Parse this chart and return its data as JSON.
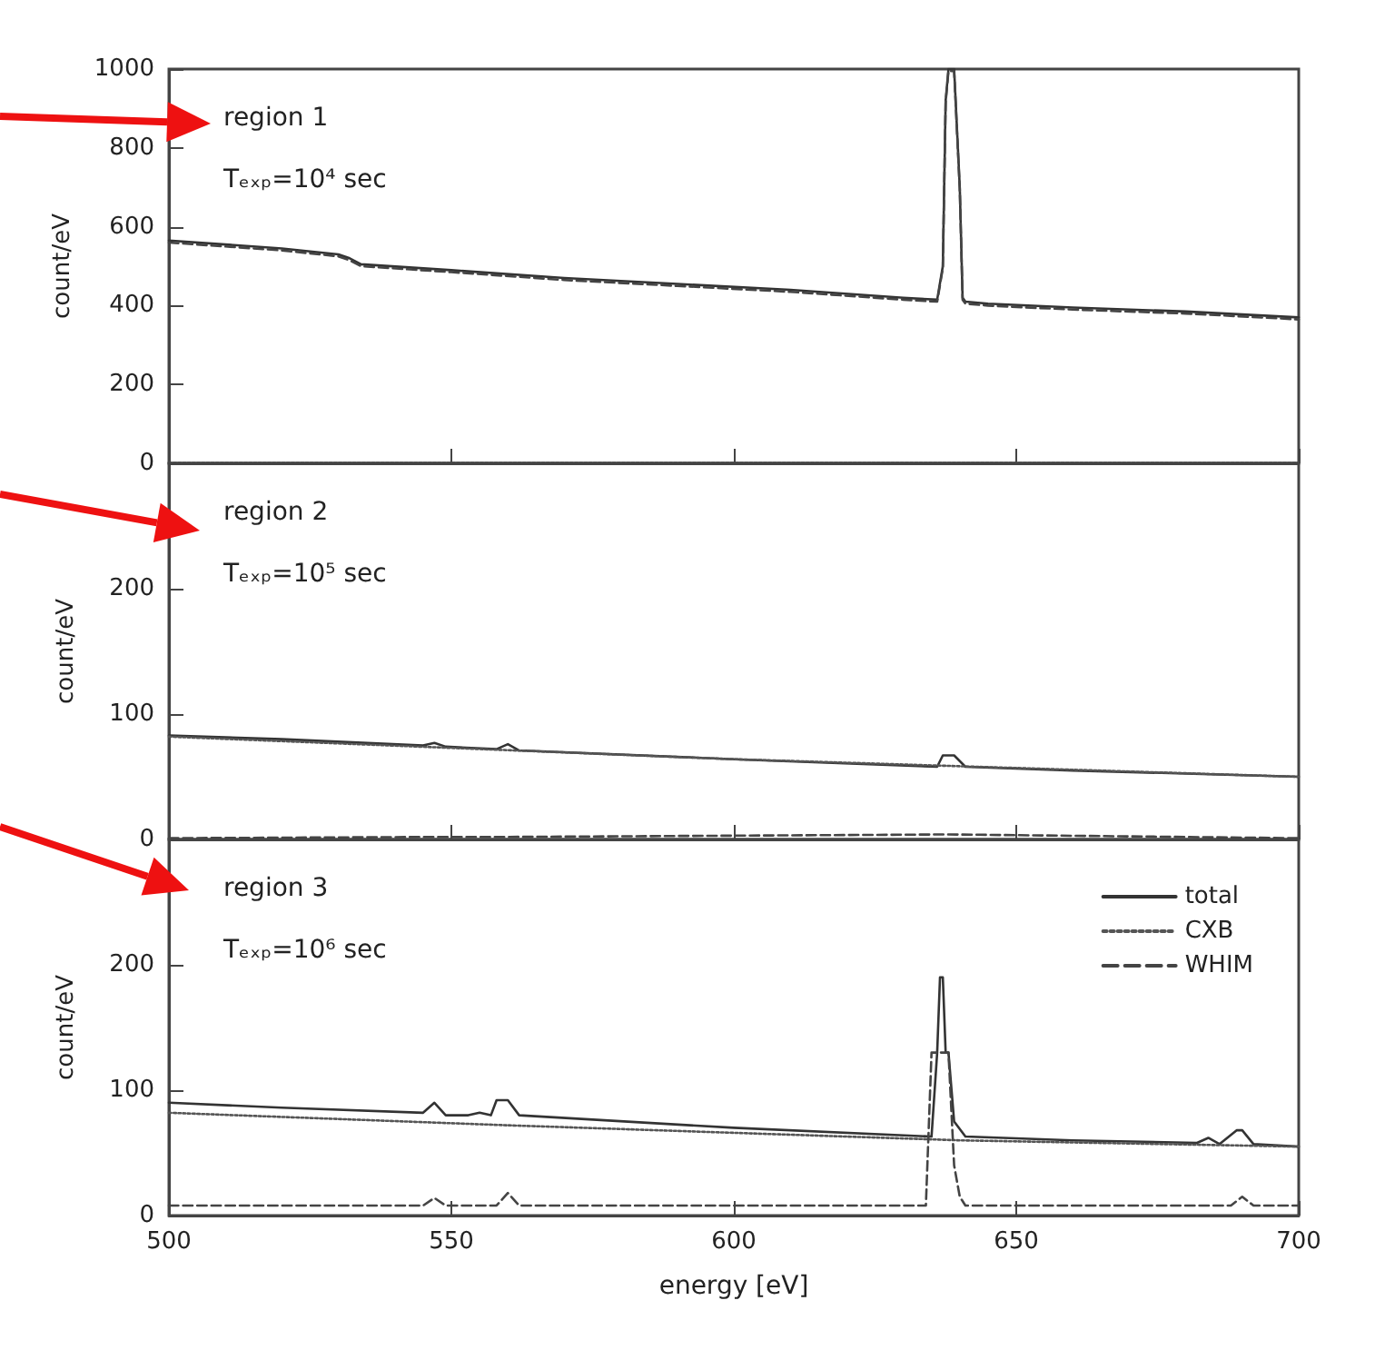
{
  "chart_data": [
    {
      "type": "line",
      "ylabel": "count/eV",
      "annotations": [
        "region 1",
        "Tₑₓₚ=10⁴ sec"
      ],
      "xlim": [
        500,
        700
      ],
      "xticks": [
        500,
        550,
        600,
        650,
        700
      ],
      "ylim": [
        0,
        1000
      ],
      "yticks": [
        0,
        200,
        400,
        600,
        800,
        1000
      ],
      "tick_labels": "y",
      "grid": false,
      "marker": "none",
      "series": [
        {
          "color": "#333333",
          "line_style": "solid",
          "x": [
            500,
            510,
            520,
            530,
            532,
            534,
            550,
            570,
            590,
            610,
            630,
            636,
            637,
            637.5,
            638,
            639,
            640,
            640.5,
            641,
            645,
            660,
            680,
            700
          ],
          "values": [
            565,
            555,
            545,
            530,
            520,
            505,
            490,
            470,
            455,
            440,
            420,
            415,
            500,
            920,
            1000,
            1000,
            700,
            420,
            410,
            405,
            395,
            385,
            370
          ]
        },
        {
          "color": "#555555",
          "line_style": "dotted",
          "x": [
            500,
            600,
            700
          ],
          "values": [
            1,
            1,
            1
          ]
        },
        {
          "color": "#444444",
          "line_style": "dashed",
          "x": [
            500,
            510,
            520,
            530,
            532,
            534,
            550,
            570,
            590,
            610,
            630,
            636,
            637,
            637.5,
            638,
            639,
            640,
            640.5,
            641,
            645,
            660,
            680,
            700
          ],
          "values": [
            560,
            550,
            540,
            525,
            515,
            500,
            485,
            465,
            450,
            435,
            415,
            410,
            495,
            915,
            995,
            995,
            695,
            415,
            405,
            400,
            390,
            380,
            365
          ]
        }
      ]
    },
    {
      "type": "line",
      "ylabel": "count/eV",
      "annotations": [
        "region 2",
        "Tₑₓₚ=10⁵ sec"
      ],
      "xlim": [
        500,
        700
      ],
      "xticks": [
        500,
        550,
        600,
        650,
        700
      ],
      "ylim": [
        0,
        300
      ],
      "yticks": [
        0,
        100,
        200
      ],
      "tick_labels": "y",
      "grid": false,
      "marker": "none",
      "series": [
        {
          "color": "#333333",
          "line_style": "solid",
          "x": [
            500,
            520,
            545,
            547,
            549,
            558,
            560,
            562,
            600,
            636,
            637,
            639,
            641,
            660,
            700
          ],
          "values": [
            83,
            80,
            75,
            77,
            74,
            72,
            76,
            71,
            64,
            58,
            67,
            67,
            58,
            55,
            50
          ]
        },
        {
          "color": "#555555",
          "line_style": "dotted",
          "x": [
            500,
            600,
            700
          ],
          "values": [
            82,
            64,
            50
          ]
        },
        {
          "color": "#444444",
          "line_style": "dashed",
          "x": [
            500,
            547,
            560,
            638,
            700
          ],
          "values": [
            1,
            2,
            2,
            4,
            1
          ]
        }
      ]
    },
    {
      "type": "line",
      "xlabel": "energy [eV]",
      "ylabel": "count/eV",
      "annotations": [
        "region 3",
        "Tₑₓₚ=10⁶ sec"
      ],
      "xlim": [
        500,
        700
      ],
      "xticks": [
        500,
        550,
        600,
        650,
        700
      ],
      "ylim": [
        0,
        300
      ],
      "yticks": [
        0,
        100,
        200
      ],
      "grid": false,
      "marker": "none",
      "legend": "top right",
      "series": [
        {
          "name": "total",
          "color": "#333333",
          "line_style": "solid",
          "x": [
            500,
            520,
            545,
            547,
            549,
            553,
            555,
            557,
            558,
            560,
            562,
            600,
            635,
            636,
            636.5,
            637,
            637.5,
            638,
            639,
            641,
            660,
            682,
            684,
            686,
            689,
            690,
            692,
            700
          ],
          "values": [
            90,
            86,
            82,
            90,
            80,
            80,
            82,
            80,
            92,
            92,
            80,
            70,
            63,
            130,
            190,
            190,
            130,
            130,
            75,
            63,
            60,
            58,
            62,
            57,
            68,
            68,
            57,
            55
          ]
        },
        {
          "name": "CXB",
          "color": "#555555",
          "line_style": "dotted",
          "x": [
            500,
            560,
            640,
            700
          ],
          "values": [
            82,
            72,
            60,
            55
          ]
        },
        {
          "name": "WHIM",
          "color": "#444444",
          "line_style": "dashed",
          "x": [
            500,
            545,
            547,
            549,
            558,
            560,
            562,
            634,
            635,
            636,
            638,
            639,
            640,
            641,
            688,
            690,
            692,
            700
          ],
          "values": [
            8,
            8,
            14,
            8,
            8,
            18,
            8,
            8,
            130,
            130,
            130,
            40,
            15,
            8,
            8,
            15,
            8,
            8
          ]
        }
      ]
    }
  ]
}
